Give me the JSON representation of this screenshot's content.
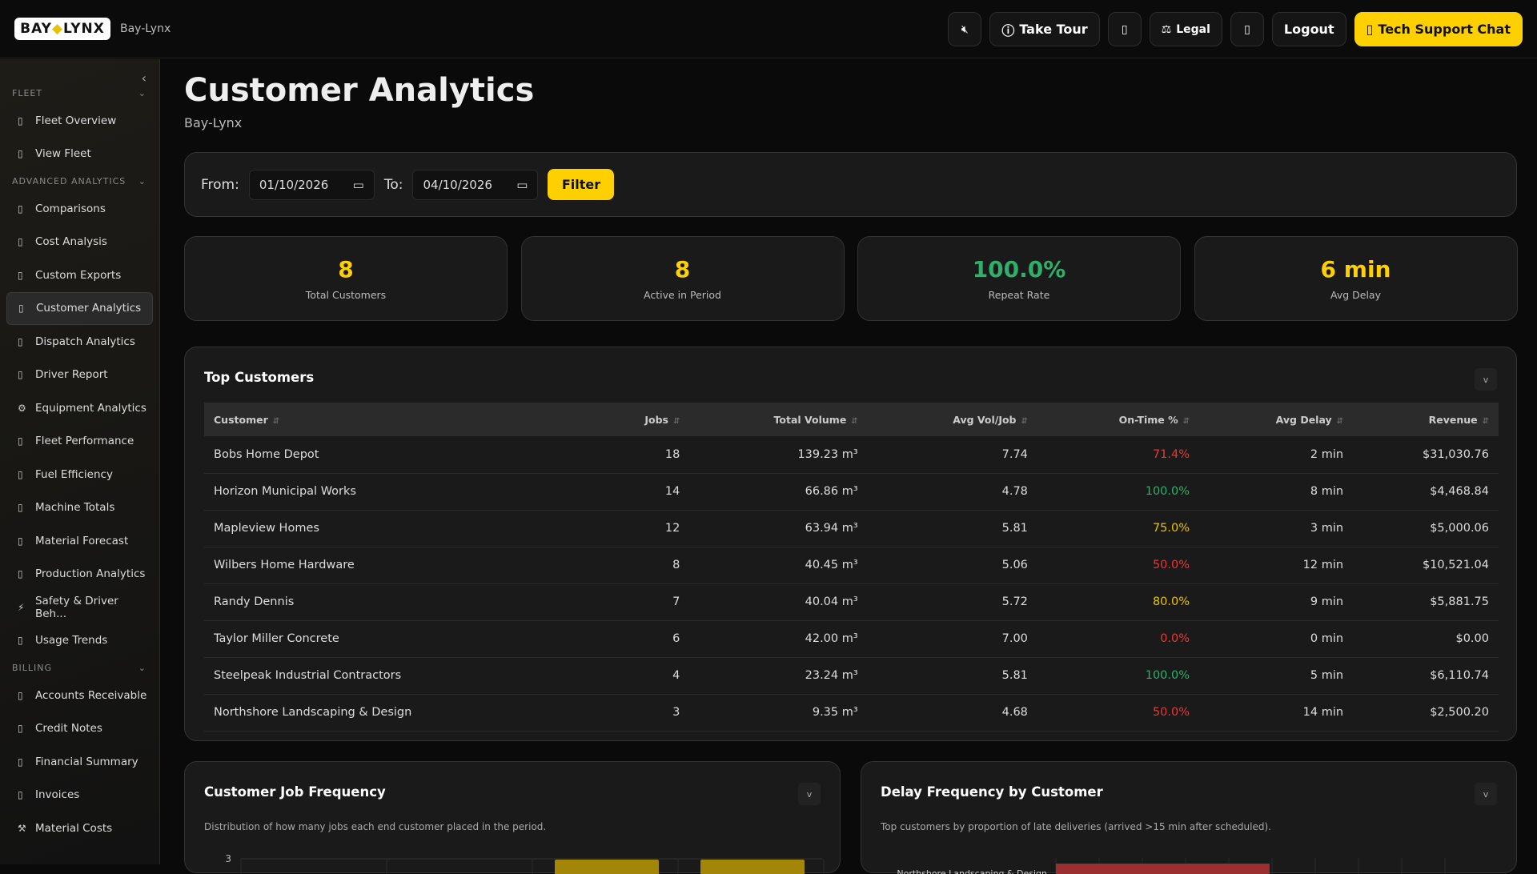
{
  "header": {
    "logo_text": "BAYLYNX",
    "brand": "Bay-Lynx",
    "mute_icon": "speaker-mute-icon",
    "take_tour": "Take Tour",
    "legal": "Legal",
    "logout": "Logout",
    "support": "Tech Support Chat"
  },
  "sidebar": {
    "sections": [
      {
        "title": "FLEET",
        "items": [
          {
            "label": "Fleet Overview",
            "icon": "box-icon"
          },
          {
            "label": "View Fleet",
            "icon": "box-icon"
          }
        ]
      },
      {
        "title": "ADVANCED ANALYTICS",
        "items": [
          {
            "label": "Comparisons",
            "icon": "box-icon"
          },
          {
            "label": "Cost Analysis",
            "icon": "box-icon"
          },
          {
            "label": "Custom Exports",
            "icon": "box-icon"
          },
          {
            "label": "Customer Analytics",
            "icon": "box-icon",
            "active": true
          },
          {
            "label": "Dispatch Analytics",
            "icon": "box-icon"
          },
          {
            "label": "Driver Report",
            "icon": "box-icon"
          },
          {
            "label": "Equipment Analytics",
            "icon": "gear-icon"
          },
          {
            "label": "Fleet Performance",
            "icon": "box-icon"
          },
          {
            "label": "Fuel Efficiency",
            "icon": "box-icon"
          },
          {
            "label": "Machine Totals",
            "icon": "box-icon"
          },
          {
            "label": "Material Forecast",
            "icon": "box-icon"
          },
          {
            "label": "Production Analytics",
            "icon": "box-icon"
          },
          {
            "label": "Safety & Driver Beh...",
            "icon": "lightning-icon"
          },
          {
            "label": "Usage Trends",
            "icon": "box-icon"
          }
        ]
      },
      {
        "title": "BILLING",
        "items": [
          {
            "label": "Accounts Receivable",
            "icon": "box-icon"
          },
          {
            "label": "Credit Notes",
            "icon": "box-icon"
          },
          {
            "label": "Financial Summary",
            "icon": "box-icon"
          },
          {
            "label": "Invoices",
            "icon": "box-icon"
          },
          {
            "label": "Material Costs",
            "icon": "hammer-pick-icon"
          }
        ]
      }
    ]
  },
  "page": {
    "title": "Customer Analytics",
    "subtitle": "Bay-Lynx"
  },
  "filter": {
    "from_label": "From:",
    "from": "01/10/2026",
    "to_label": "To:",
    "to": "04/10/2026",
    "button": "Filter"
  },
  "kpis": [
    {
      "value": "8",
      "label": "Total Customers",
      "color": "#ffd000"
    },
    {
      "value": "8",
      "label": "Active in Period",
      "color": "#ffd000"
    },
    {
      "value": "100.0%",
      "label": "Repeat Rate",
      "color": "#2fb06a"
    },
    {
      "value": "6 min",
      "label": "Avg Delay",
      "color": "#ffd000"
    }
  ],
  "top_customers": {
    "title": "Top Customers",
    "columns": [
      "Customer",
      "Jobs",
      "Total Volume",
      "Avg Vol/Job",
      "On-Time %",
      "Avg Delay",
      "Revenue"
    ],
    "rows": [
      [
        "Bobs Home Depot",
        "18",
        "139.23 m³",
        "7.74",
        "71.4%",
        "2 min",
        "$31,030.76",
        "red"
      ],
      [
        "Horizon Municipal Works",
        "14",
        "66.86 m³",
        "4.78",
        "100.0%",
        "8 min",
        "$4,468.84",
        "green"
      ],
      [
        "Mapleview Homes",
        "12",
        "63.94 m³",
        "5.81",
        "75.0%",
        "3 min",
        "$5,000.06",
        "yel"
      ],
      [
        "Wilbers Home Hardware",
        "8",
        "40.45 m³",
        "5.06",
        "50.0%",
        "12 min",
        "$10,521.04",
        "red"
      ],
      [
        "Randy Dennis",
        "7",
        "40.04 m³",
        "5.72",
        "80.0%",
        "9 min",
        "$5,881.75",
        "yel"
      ],
      [
        "Taylor Miller Concrete",
        "6",
        "42.00 m³",
        "7.00",
        "0.0%",
        "0 min",
        "$0.00",
        "red"
      ],
      [
        "Steelpeak Industrial Contractors",
        "4",
        "23.24 m³",
        "5.81",
        "100.0%",
        "5 min",
        "$6,110.74",
        "green"
      ],
      [
        "Northshore Landscaping & Design",
        "3",
        "9.35 m³",
        "4.68",
        "50.0%",
        "14 min",
        "$2,500.20",
        "red"
      ]
    ]
  },
  "chart_data": [
    {
      "type": "bar",
      "title": "Customer Job Frequency",
      "subtitle": "Distribution of how many jobs each end customer placed in the period.",
      "y_ticks": [
        "3"
      ],
      "values": [
        null,
        null,
        3,
        3
      ],
      "color": "#a38607"
    },
    {
      "type": "bar",
      "orientation": "horizontal",
      "title": "Delay Frequency by Customer",
      "subtitle": "Top customers by proportion of late deliveries (arrived >15 min after scheduled).",
      "categories": [
        "Northshore Landscaping & Design"
      ],
      "color": "#9b2f2f"
    }
  ]
}
